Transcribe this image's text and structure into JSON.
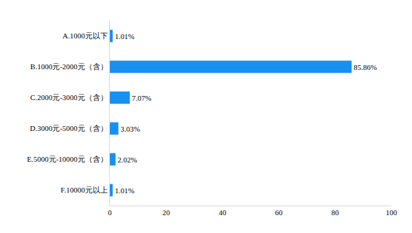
{
  "chart_data": {
    "type": "bar",
    "orientation": "horizontal",
    "categories": [
      "A.1000元以下",
      "B.1000元-2000元（含）",
      "C.2000元-3000元（含）",
      "D.3000元-5000元（含）",
      "E.5000元-10000元（含）",
      "F.10000元以上"
    ],
    "values": [
      1.01,
      85.86,
      7.07,
      3.03,
      2.02,
      1.01
    ],
    "value_labels": [
      "1.01%",
      "85.86%",
      "7.07%",
      "3.03%",
      "2.02%",
      "1.01%"
    ],
    "color": "#1890f0",
    "xlim": [
      0,
      100
    ],
    "xticks": [
      0,
      20,
      40,
      60,
      80,
      100
    ],
    "grid": false,
    "data_labels": true
  }
}
